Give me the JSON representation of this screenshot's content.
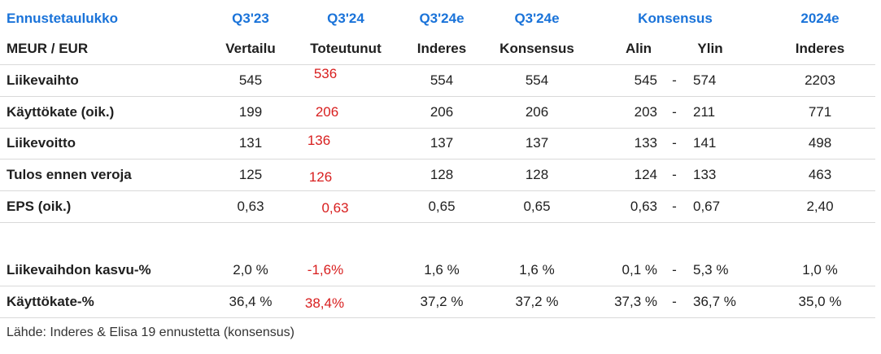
{
  "header": {
    "title": "Ennustetaulukko",
    "cols": [
      "Q3'23",
      "Q3'24",
      "Q3'24e",
      "Q3'24e",
      "Konsensus",
      "2024e"
    ]
  },
  "subheader": {
    "label": "MEUR / EUR",
    "cols": [
      "Vertailu",
      "Toteutunut",
      "Inderes",
      "Konsensus",
      "Alin",
      "Ylin",
      "Inderes"
    ]
  },
  "rows": [
    {
      "label": "Liikevaihto",
      "q323": "545",
      "q324": "536",
      "ind": "554",
      "kons": "554",
      "low": "545",
      "dash": "-",
      "high": "574",
      "y2024": "2203"
    },
    {
      "label": "Käyttökate (oik.)",
      "q323": "199",
      "q324": "206",
      "ind": "206",
      "kons": "206",
      "low": "203",
      "dash": "-",
      "high": "211",
      "y2024": "771"
    },
    {
      "label": "Liikevoitto",
      "q323": "131",
      "q324": "136",
      "ind": "137",
      "kons": "137",
      "low": "133",
      "dash": "-",
      "high": "141",
      "y2024": "498"
    },
    {
      "label": "Tulos ennen veroja",
      "q323": "125",
      "q324": "126",
      "ind": "128",
      "kons": "128",
      "low": "124",
      "dash": "-",
      "high": "133",
      "y2024": "463"
    },
    {
      "label": "EPS (oik.)",
      "q323": "0,63",
      "q324": "0,63",
      "ind": "0,65",
      "kons": "0,65",
      "low": "0,63",
      "dash": "-",
      "high": "0,67",
      "y2024": "2,40"
    },
    {
      "label": "Liikevaihdon kasvu-%",
      "q323": "2,0 %",
      "q324": "-1,6%",
      "ind": "1,6 %",
      "kons": "1,6 %",
      "low": "0,1 %",
      "dash": "-",
      "high": "5,3 %",
      "y2024": "1,0 %"
    },
    {
      "label": "Käyttökate-%",
      "q323": "36,4 %",
      "q324": "38,4%",
      "ind": "37,2 %",
      "kons": "37,2 %",
      "low": "37,3 %",
      "dash": "-",
      "high": "36,7 %",
      "y2024": "35,0 %"
    }
  ],
  "source": "Lähde: Inderes & Elisa 19 ennustetta (konsensus)",
  "colors": {
    "header_blue": "#1a73d9",
    "actual_red": "#d81e1e",
    "separator": "#d9d9d9"
  }
}
